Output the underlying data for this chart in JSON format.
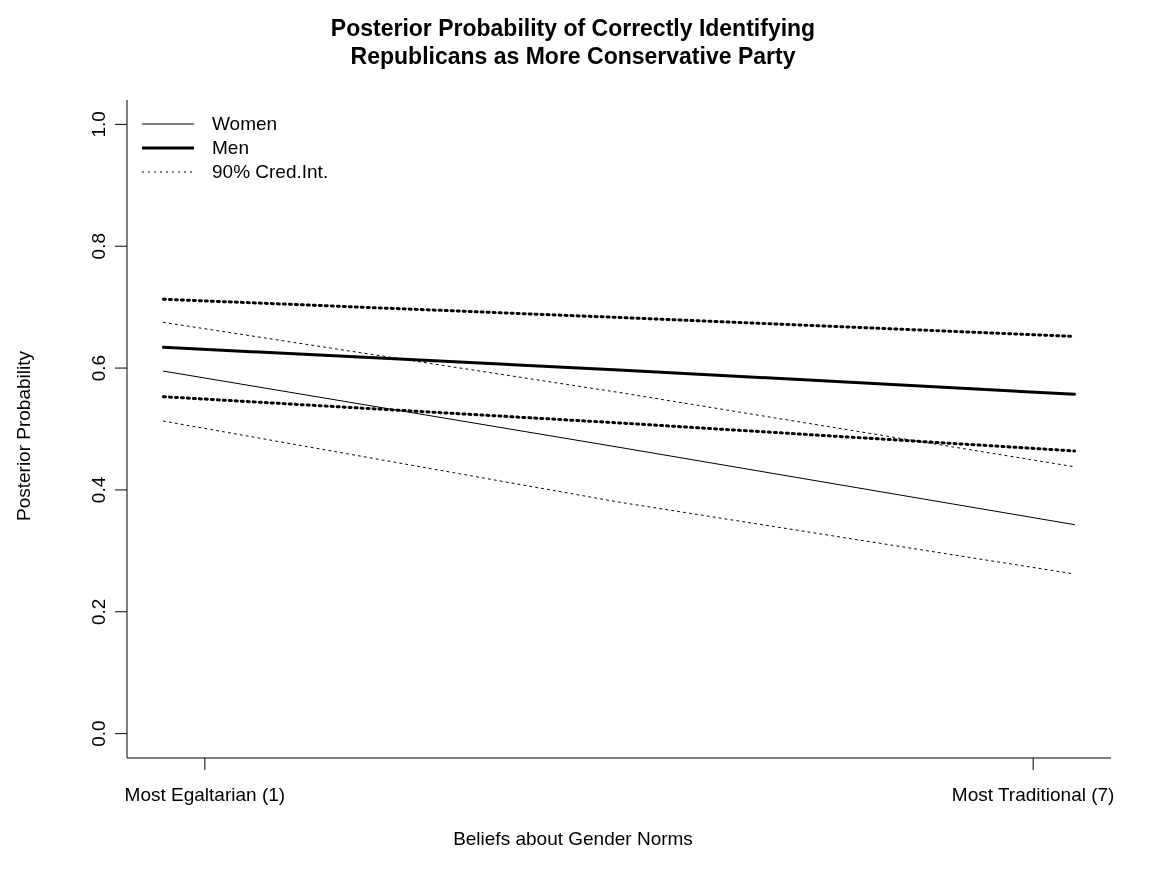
{
  "chart_data": {
    "type": "line",
    "title": "Posterior Probability of Correctly Identifying\nRepublicans as More Conservative Party",
    "xlabel": "Beliefs about Gender Norms",
    "ylabel": "Posterior Probability",
    "x": [
      0.7,
      4,
      7.3
    ],
    "xlim": [
      0.436,
      7.564
    ],
    "xticks": [
      {
        "value": 1,
        "label": "Most Egaltarian (1)"
      },
      {
        "value": 7,
        "label": "Most Traditional (7)"
      }
    ],
    "ylim": [
      -0.04,
      1.04
    ],
    "yticks": [
      {
        "value": 0,
        "label": "0.0"
      },
      {
        "value": 0.2,
        "label": "0.2"
      },
      {
        "value": 0.4,
        "label": "0.4"
      },
      {
        "value": 0.6,
        "label": "0.6"
      },
      {
        "value": 0.8,
        "label": "0.8"
      },
      {
        "value": 1,
        "label": "1.0"
      }
    ],
    "grid": false,
    "legend": "top left",
    "marker": "none",
    "series": [
      {
        "name": "Women",
        "color": "#000000",
        "line_style": "solid",
        "values": [
          0.595,
          0.47,
          0.343
        ]
      },
      {
        "name": "Men",
        "color": "#000000",
        "line_style": "solid",
        "values": [
          0.634,
          0.597,
          0.557
        ]
      },
      {
        "name": "90% Cred.Int.",
        "color": "#000000",
        "line_style": "dotted",
        "values": [
          0.675,
          0.56,
          0.438
        ]
      },
      {
        "color": "#000000",
        "line_style": "dotted",
        "values": [
          0.513,
          0.38,
          0.262
        ]
      },
      {
        "color": "#000000",
        "line_style": "dotted",
        "values": [
          0.713,
          0.683,
          0.652
        ]
      },
      {
        "color": "#000000",
        "line_style": "dotted",
        "values": [
          0.553,
          0.51,
          0.464
        ]
      }
    ]
  }
}
